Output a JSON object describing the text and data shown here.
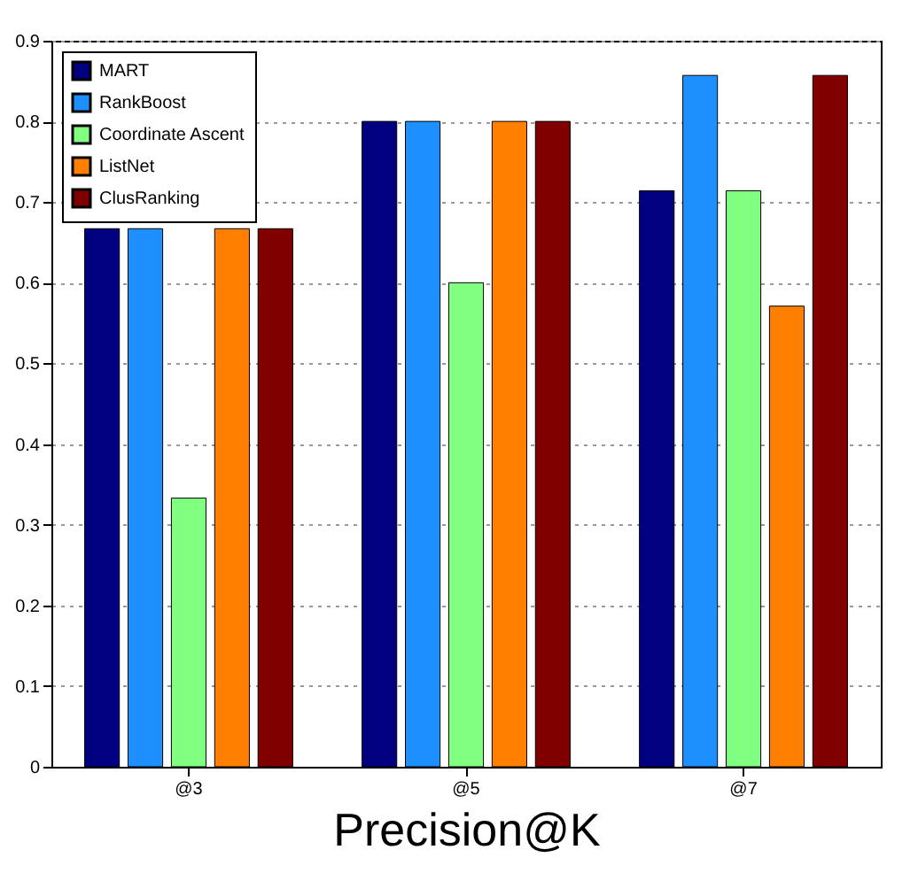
{
  "chart_data": {
    "type": "bar",
    "xlabel": "Precision@K",
    "categories": [
      "@3",
      "@5",
      "@7"
    ],
    "series": [
      {
        "name": "MART",
        "color": "#000080",
        "values": [
          0.667,
          0.8,
          0.714
        ]
      },
      {
        "name": "RankBoost",
        "color": "#1e8fff",
        "values": [
          0.667,
          0.8,
          0.857
        ]
      },
      {
        "name": "Coordinate Ascent",
        "color": "#80ff80",
        "values": [
          0.333,
          0.6,
          0.714
        ]
      },
      {
        "name": "ListNet",
        "color": "#ff7f00",
        "values": [
          0.667,
          0.8,
          0.571
        ]
      },
      {
        "name": "ClusRanking",
        "color": "#800000",
        "values": [
          0.667,
          0.8,
          0.857
        ]
      }
    ],
    "ylim": [
      0,
      0.9
    ],
    "yticks": [
      0,
      0.1,
      0.2,
      0.3,
      0.4,
      0.5,
      0.6,
      0.7,
      0.8,
      0.9
    ],
    "grid": "y",
    "legend": "top left"
  }
}
